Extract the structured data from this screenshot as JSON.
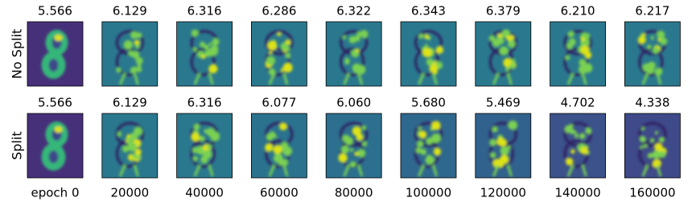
{
  "rows": [
    {
      "label": "No Split",
      "titles": [
        "5.566",
        "6.129",
        "6.316",
        "6.286",
        "6.322",
        "6.343",
        "6.379",
        "6.210",
        "6.217"
      ]
    },
    {
      "label": "Split",
      "titles": [
        "5.566",
        "6.129",
        "6.316",
        "6.077",
        "6.060",
        "5.680",
        "5.469",
        "4.702",
        "4.338"
      ]
    }
  ],
  "columns": [
    "epoch 0",
    "20000",
    "40000",
    "60000",
    "80000",
    "100000",
    "120000",
    "140000",
    "160000"
  ]
}
